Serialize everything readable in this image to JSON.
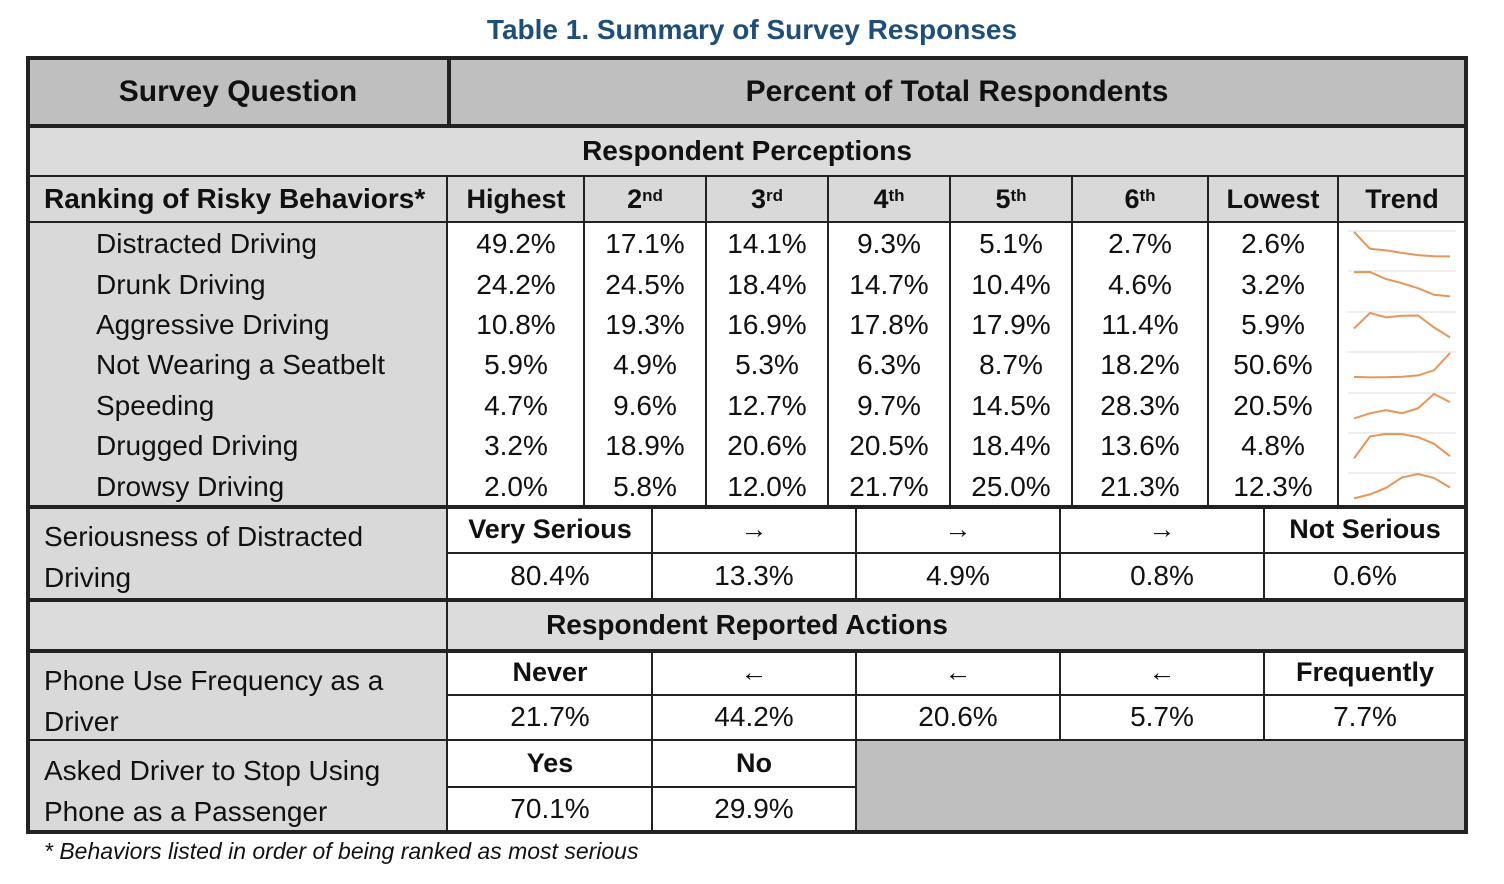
{
  "title": "Table 1.  Summary of Survey Responses",
  "header": {
    "col1": "Survey Question",
    "col2": "Percent of Total Respondents"
  },
  "sections": {
    "perceptions": "Respondent Perceptions",
    "actions": "Respondent Reported Actions"
  },
  "ranking": {
    "label": "Ranking of Risky Behaviors*",
    "columns": [
      {
        "main": "Highest",
        "sup": ""
      },
      {
        "main": "2",
        "sup": "nd"
      },
      {
        "main": "3",
        "sup": "rd"
      },
      {
        "main": "4",
        "sup": "th"
      },
      {
        "main": "5",
        "sup": "th"
      },
      {
        "main": "6",
        "sup": "th"
      },
      {
        "main": "Lowest",
        "sup": ""
      },
      {
        "main": "Trend",
        "sup": ""
      }
    ],
    "rows": [
      {
        "label": "Distracted Driving",
        "values": [
          "49.2%",
          "17.1%",
          "14.1%",
          "9.3%",
          "5.1%",
          "2.7%",
          "2.6%"
        ],
        "trend": [
          49.2,
          17.1,
          14.1,
          9.3,
          5.1,
          2.7,
          2.6
        ]
      },
      {
        "label": "Drunk Driving",
        "values": [
          "24.2%",
          "24.5%",
          "18.4%",
          "14.7%",
          "10.4%",
          "4.6%",
          "3.2%"
        ],
        "trend": [
          24.2,
          24.5,
          18.4,
          14.7,
          10.4,
          4.6,
          3.2
        ]
      },
      {
        "label": "Aggressive Driving",
        "values": [
          "10.8%",
          "19.3%",
          "16.9%",
          "17.8%",
          "17.9%",
          "11.4%",
          "5.9%"
        ],
        "trend": [
          10.8,
          19.3,
          16.9,
          17.8,
          17.9,
          11.4,
          5.9
        ]
      },
      {
        "label": "Not Wearing a Seatbelt",
        "values": [
          "5.9%",
          "4.9%",
          "5.3%",
          "6.3%",
          "8.7%",
          "18.2%",
          "50.6%"
        ],
        "trend": [
          5.9,
          4.9,
          5.3,
          6.3,
          8.7,
          18.2,
          50.6
        ]
      },
      {
        "label": "Speeding",
        "values": [
          "4.7%",
          "9.6%",
          "12.7%",
          "9.7%",
          "14.5%",
          "28.3%",
          "20.5%"
        ],
        "trend": [
          4.7,
          9.6,
          12.7,
          9.7,
          14.5,
          28.3,
          20.5
        ]
      },
      {
        "label": "Drugged Driving",
        "values": [
          "3.2%",
          "18.9%",
          "20.6%",
          "20.5%",
          "18.4%",
          "13.6%",
          "4.8%"
        ],
        "trend": [
          3.2,
          18.9,
          20.6,
          20.5,
          18.4,
          13.6,
          4.8
        ]
      },
      {
        "label": "Drowsy Driving",
        "values": [
          "2.0%",
          "5.8%",
          "12.0%",
          "21.7%",
          "25.0%",
          "21.3%",
          "12.3%"
        ],
        "trend": [
          2.0,
          5.8,
          12.0,
          21.7,
          25.0,
          21.3,
          12.3
        ]
      }
    ],
    "trend_color": "#e8955a"
  },
  "seriousness": {
    "label": "Seriousness of Distracted Driving",
    "headers": [
      "Very Serious",
      "→",
      "→",
      "→",
      "Not Serious"
    ],
    "values": [
      "80.4%",
      "13.3%",
      "4.9%",
      "0.8%",
      "0.6%"
    ]
  },
  "phone_use": {
    "label": "Phone Use Frequency as a Driver",
    "headers": [
      "Never",
      "←",
      "←",
      "←",
      "Frequently"
    ],
    "values": [
      "21.7%",
      "44.2%",
      "20.6%",
      "5.7%",
      "7.7%"
    ]
  },
  "asked_driver": {
    "label": "Asked Driver to Stop Using Phone as a Passenger",
    "headers": [
      "Yes",
      "No"
    ],
    "values": [
      "70.1%",
      "29.9%"
    ]
  },
  "footnote": "* Behaviors listed in order of being ranked as most serious"
}
